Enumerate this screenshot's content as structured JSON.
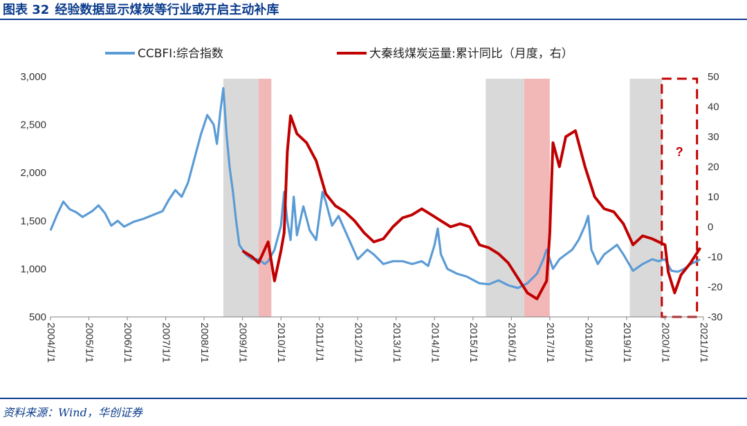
{
  "header": {
    "figure_no": "图表 32",
    "title": "经验数据显示煤炭等行业或开启主动补库"
  },
  "footer": {
    "source": "资料来源：Wind，华创证券"
  },
  "colors": {
    "brand": "#0b3c8c",
    "ccbfi": "#5b9bd5",
    "rail": "#c00000",
    "gray_band": "#d9d9d9",
    "red_band": "#f2b8b8"
  },
  "chart_data": {
    "type": "line",
    "title": "",
    "x_tick_labels": [
      "2004/1/1",
      "2005/1/1",
      "2006/1/1",
      "2007/1/1",
      "2008/1/1",
      "2009/1/1",
      "2010/1/1",
      "2011/1/1",
      "2012/1/1",
      "2013/1/1",
      "2014/1/1",
      "2015/1/1",
      "2016/1/1",
      "2017/1/1",
      "2018/1/1",
      "2019/1/1",
      "2020/1/1",
      "2021/1/1"
    ],
    "y_left": {
      "lim": [
        500,
        3000
      ],
      "ticks": [
        500,
        1000,
        1500,
        2000,
        2500,
        3000
      ],
      "tick_labels": [
        "500",
        "1,000",
        "1,500",
        "2,000",
        "2,500",
        "3,000"
      ]
    },
    "y_right": {
      "lim": [
        -30,
        50
      ],
      "ticks": [
        -30,
        -20,
        -10,
        0,
        10,
        20,
        30,
        40,
        50
      ],
      "tick_labels": [
        "-30",
        "-20",
        "-10",
        "0",
        "10",
        "20",
        "30",
        "40",
        "50"
      ]
    },
    "series": [
      {
        "name": "CCBFI:综合指数",
        "axis": "left",
        "color": "#5b9bd5",
        "points": [
          [
            "2004-01",
            1400
          ],
          [
            "2004-03",
            1560
          ],
          [
            "2004-05",
            1700
          ],
          [
            "2004-07",
            1620
          ],
          [
            "2004-09",
            1590
          ],
          [
            "2004-11",
            1540
          ],
          [
            "2005-02",
            1600
          ],
          [
            "2005-04",
            1660
          ],
          [
            "2005-06",
            1580
          ],
          [
            "2005-08",
            1450
          ],
          [
            "2005-10",
            1500
          ],
          [
            "2005-12",
            1440
          ],
          [
            "2006-03",
            1490
          ],
          [
            "2006-06",
            1520
          ],
          [
            "2006-09",
            1560
          ],
          [
            "2006-12",
            1600
          ],
          [
            "2007-02",
            1720
          ],
          [
            "2007-04",
            1820
          ],
          [
            "2007-06",
            1750
          ],
          [
            "2007-08",
            1900
          ],
          [
            "2007-10",
            2150
          ],
          [
            "2007-12",
            2400
          ],
          [
            "2008-02",
            2600
          ],
          [
            "2008-04",
            2500
          ],
          [
            "2008-05",
            2300
          ],
          [
            "2008-06",
            2620
          ],
          [
            "2008-07",
            2880
          ],
          [
            "2008-08",
            2400
          ],
          [
            "2008-09",
            2050
          ],
          [
            "2008-10",
            1800
          ],
          [
            "2008-11",
            1500
          ],
          [
            "2008-12",
            1250
          ],
          [
            "2009-02",
            1150
          ],
          [
            "2009-04",
            1100
          ],
          [
            "2009-06",
            1100
          ],
          [
            "2009-08",
            1050
          ],
          [
            "2009-09",
            1080
          ],
          [
            "2009-11",
            1200
          ],
          [
            "2010-01",
            1450
          ],
          [
            "2010-02",
            1800
          ],
          [
            "2010-03",
            1500
          ],
          [
            "2010-04",
            1300
          ],
          [
            "2010-05",
            1750
          ],
          [
            "2010-06",
            1350
          ],
          [
            "2010-08",
            1650
          ],
          [
            "2010-10",
            1400
          ],
          [
            "2010-12",
            1300
          ],
          [
            "2011-02",
            1800
          ],
          [
            "2011-03",
            1700
          ],
          [
            "2011-05",
            1450
          ],
          [
            "2011-07",
            1550
          ],
          [
            "2011-09",
            1400
          ],
          [
            "2011-11",
            1250
          ],
          [
            "2012-01",
            1100
          ],
          [
            "2012-04",
            1200
          ],
          [
            "2012-06",
            1150
          ],
          [
            "2012-09",
            1050
          ],
          [
            "2012-12",
            1080
          ],
          [
            "2013-03",
            1080
          ],
          [
            "2013-06",
            1050
          ],
          [
            "2013-09",
            1080
          ],
          [
            "2013-11",
            1030
          ],
          [
            "2014-01",
            1250
          ],
          [
            "2014-02",
            1420
          ],
          [
            "2014-03",
            1150
          ],
          [
            "2014-05",
            1000
          ],
          [
            "2014-08",
            950
          ],
          [
            "2014-11",
            920
          ],
          [
            "2015-03",
            850
          ],
          [
            "2015-06",
            840
          ],
          [
            "2015-09",
            880
          ],
          [
            "2015-12",
            830
          ],
          [
            "2016-03",
            800
          ],
          [
            "2016-06",
            850
          ],
          [
            "2016-09",
            950
          ],
          [
            "2016-11",
            1100
          ],
          [
            "2016-12",
            1200
          ],
          [
            "2017-02",
            1000
          ],
          [
            "2017-04",
            1100
          ],
          [
            "2017-06",
            1150
          ],
          [
            "2017-08",
            1200
          ],
          [
            "2017-10",
            1300
          ],
          [
            "2017-12",
            1450
          ],
          [
            "2018-01",
            1550
          ],
          [
            "2018-02",
            1200
          ],
          [
            "2018-04",
            1050
          ],
          [
            "2018-06",
            1150
          ],
          [
            "2018-08",
            1200
          ],
          [
            "2018-10",
            1250
          ],
          [
            "2018-12",
            1150
          ],
          [
            "2019-03",
            980
          ],
          [
            "2019-06",
            1050
          ],
          [
            "2019-09",
            1100
          ],
          [
            "2019-11",
            1080
          ],
          [
            "2020-01",
            1100
          ],
          [
            "2020-03",
            980
          ],
          [
            "2020-05",
            970
          ],
          [
            "2020-07",
            1000
          ],
          [
            "2020-09",
            1050
          ],
          [
            "2020-11",
            1080
          ],
          [
            "2020-12",
            1100
          ]
        ]
      },
      {
        "name": "大秦线煤炭运量:累计同比（月度，右）",
        "axis": "right",
        "color": "#c00000",
        "points": [
          [
            "2009-01",
            -8
          ],
          [
            "2009-04",
            -10
          ],
          [
            "2009-06",
            -12
          ],
          [
            "2009-09",
            -5
          ],
          [
            "2009-11",
            -18
          ],
          [
            "2010-01",
            -8
          ],
          [
            "2010-02",
            -2
          ],
          [
            "2010-03",
            25
          ],
          [
            "2010-04",
            37
          ],
          [
            "2010-06",
            31
          ],
          [
            "2010-09",
            28
          ],
          [
            "2010-12",
            22
          ],
          [
            "2011-03",
            11
          ],
          [
            "2011-06",
            7
          ],
          [
            "2011-09",
            5
          ],
          [
            "2011-12",
            2
          ],
          [
            "2012-03",
            -2
          ],
          [
            "2012-06",
            -5
          ],
          [
            "2012-09",
            -4
          ],
          [
            "2012-12",
            0
          ],
          [
            "2013-03",
            3
          ],
          [
            "2013-06",
            4
          ],
          [
            "2013-09",
            6
          ],
          [
            "2013-12",
            4
          ],
          [
            "2014-03",
            2
          ],
          [
            "2014-06",
            0
          ],
          [
            "2014-09",
            1
          ],
          [
            "2014-12",
            0
          ],
          [
            "2015-03",
            -6
          ],
          [
            "2015-06",
            -7
          ],
          [
            "2015-09",
            -9
          ],
          [
            "2015-12",
            -12
          ],
          [
            "2016-03",
            -17
          ],
          [
            "2016-06",
            -22
          ],
          [
            "2016-09",
            -24
          ],
          [
            "2016-12",
            -18
          ],
          [
            "2017-01",
            -2
          ],
          [
            "2017-02",
            28
          ],
          [
            "2017-04",
            20
          ],
          [
            "2017-06",
            30
          ],
          [
            "2017-09",
            32
          ],
          [
            "2017-12",
            20
          ],
          [
            "2018-03",
            10
          ],
          [
            "2018-06",
            6
          ],
          [
            "2018-09",
            5
          ],
          [
            "2018-12",
            1
          ],
          [
            "2019-03",
            -6
          ],
          [
            "2019-06",
            -3
          ],
          [
            "2019-09",
            -4
          ],
          [
            "2019-11",
            -5
          ],
          [
            "2020-01",
            -6
          ],
          [
            "2020-02",
            -15
          ],
          [
            "2020-04",
            -22
          ],
          [
            "2020-06",
            -16
          ],
          [
            "2020-09",
            -12
          ],
          [
            "2020-12",
            -7
          ]
        ]
      }
    ],
    "shaded_periods": [
      {
        "kind": "gray",
        "from": "2008-07",
        "to": "2009-06"
      },
      {
        "kind": "red",
        "from": "2009-06",
        "to": "2009-10"
      },
      {
        "kind": "gray",
        "from": "2015-05",
        "to": "2016-05"
      },
      {
        "kind": "red",
        "from": "2016-05",
        "to": "2017-01"
      },
      {
        "kind": "gray",
        "from": "2019-02",
        "to": "2019-12"
      }
    ],
    "annotation": {
      "from": "2019-12",
      "to": "2020-11",
      "text": "?"
    },
    "legend_placement": "top"
  }
}
